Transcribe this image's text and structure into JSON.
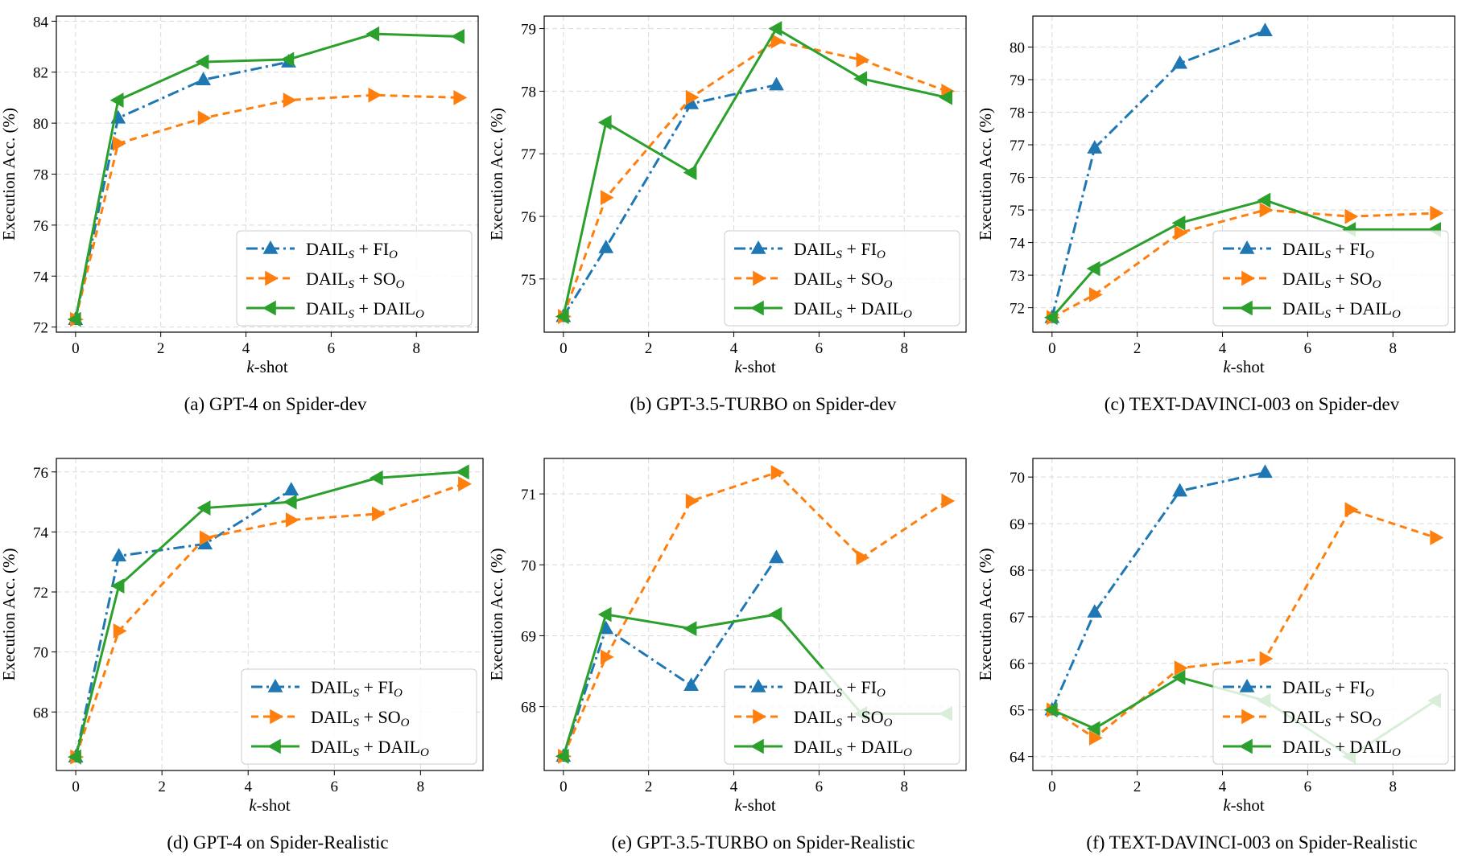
{
  "legend_labels": {
    "fi": {
      "main": "DAIL",
      "s": "S",
      "plus": " + ",
      "tail": "FI",
      "o": "O"
    },
    "so": {
      "main": "DAIL",
      "s": "S",
      "plus": " + ",
      "tail": "SO",
      "o": "O"
    },
    "dail": {
      "main": "DAIL",
      "s": "S",
      "plus": " + ",
      "tail": "DAIL",
      "o": "O"
    }
  },
  "series_colors": {
    "fi": "#1f77b4",
    "so": "#ff7f0e",
    "dail": "#2ca02c"
  },
  "chart_data": [
    {
      "type": "line",
      "caption": "(a)  GPT-4 on Spider-dev",
      "xlabel": "k-shot",
      "ylabel": "Execution Acc. (%)",
      "xlim": [
        -0.45,
        9.45
      ],
      "ylim": [
        71.8,
        84.2
      ],
      "xticks": [
        0,
        2,
        4,
        6,
        8
      ],
      "yticks": [
        72,
        74,
        76,
        78,
        80,
        82,
        84
      ],
      "legend_position": "lower-right",
      "series": [
        {
          "key": "fi",
          "x": [
            0,
            1,
            3,
            5
          ],
          "y": [
            72.3,
            80.2,
            81.7,
            82.4
          ]
        },
        {
          "key": "so",
          "x": [
            0,
            1,
            3,
            5,
            7,
            9
          ],
          "y": [
            72.3,
            79.2,
            80.2,
            80.9,
            81.1,
            81.0
          ]
        },
        {
          "key": "dail",
          "x": [
            0,
            1,
            3,
            5,
            7,
            9
          ],
          "y": [
            72.3,
            80.9,
            82.4,
            82.5,
            83.5,
            83.4
          ]
        }
      ]
    },
    {
      "type": "line",
      "caption": "(b)  GPT-3.5-TURBO on Spider-dev",
      "xlabel": "k-shot",
      "ylabel": "Execution Acc. (%)",
      "xlim": [
        -0.45,
        9.45
      ],
      "ylim": [
        74.15,
        79.2
      ],
      "xticks": [
        0,
        2,
        4,
        6,
        8
      ],
      "yticks": [
        75,
        76,
        77,
        78,
        79
      ],
      "legend_position": "lower-right",
      "series": [
        {
          "key": "fi",
          "x": [
            0,
            1,
            3,
            5
          ],
          "y": [
            74.4,
            75.5,
            77.8,
            78.1
          ]
        },
        {
          "key": "so",
          "x": [
            0,
            1,
            3,
            5,
            7,
            9
          ],
          "y": [
            74.4,
            76.3,
            77.9,
            78.8,
            78.5,
            78.0
          ]
        },
        {
          "key": "dail",
          "x": [
            0,
            1,
            3,
            5,
            7,
            9
          ],
          "y": [
            74.4,
            77.5,
            76.7,
            79.0,
            78.2,
            77.9
          ]
        }
      ]
    },
    {
      "type": "line",
      "caption": "(c)  TEXT-DAVINCI-003 on Spider-dev",
      "xlabel": "k-shot",
      "ylabel": "Execution Acc. (%)",
      "xlim": [
        -0.45,
        9.45
      ],
      "ylim": [
        71.25,
        80.95
      ],
      "xticks": [
        0,
        2,
        4,
        6,
        8
      ],
      "yticks": [
        72,
        73,
        74,
        75,
        76,
        77,
        78,
        79,
        80
      ],
      "legend_position": "lower-right",
      "series": [
        {
          "key": "fi",
          "x": [
            0,
            1,
            3,
            5
          ],
          "y": [
            71.7,
            76.9,
            79.5,
            80.5
          ]
        },
        {
          "key": "so",
          "x": [
            0,
            1,
            3,
            5,
            7,
            9
          ],
          "y": [
            71.7,
            72.4,
            74.3,
            75.0,
            74.8,
            74.9
          ]
        },
        {
          "key": "dail",
          "x": [
            0,
            1,
            3,
            5,
            7,
            9
          ],
          "y": [
            71.7,
            73.2,
            74.6,
            75.3,
            74.4,
            74.4
          ]
        }
      ]
    },
    {
      "type": "line",
      "caption": "(d)  GPT-4 on Spider-Realistic",
      "xlabel": "k-shot",
      "ylabel": "Execution Acc. (%)",
      "xlim": [
        -0.45,
        9.45
      ],
      "ylim": [
        66.05,
        76.45
      ],
      "xticks": [
        0,
        2,
        4,
        6,
        8
      ],
      "yticks": [
        68,
        70,
        72,
        74,
        76
      ],
      "legend_position": "lower-right",
      "series": [
        {
          "key": "fi",
          "x": [
            0,
            1,
            3,
            5
          ],
          "y": [
            66.5,
            73.2,
            73.6,
            75.4
          ]
        },
        {
          "key": "so",
          "x": [
            0,
            1,
            3,
            5,
            7,
            9
          ],
          "y": [
            66.5,
            70.7,
            73.8,
            74.4,
            74.6,
            75.6
          ]
        },
        {
          "key": "dail",
          "x": [
            0,
            1,
            3,
            5,
            7,
            9
          ],
          "y": [
            66.5,
            72.2,
            74.8,
            75.0,
            75.8,
            76.0
          ]
        }
      ]
    },
    {
      "type": "line",
      "caption": "(e)  GPT-3.5-TURBO on Spider-Realistic",
      "xlabel": "k-shot",
      "ylabel": "Execution Acc. (%)",
      "xlim": [
        -0.45,
        9.45
      ],
      "ylim": [
        67.1,
        71.5
      ],
      "xticks": [
        0,
        2,
        4,
        6,
        8
      ],
      "yticks": [
        68,
        69,
        70,
        71
      ],
      "legend_position": "lower-right",
      "series": [
        {
          "key": "fi",
          "x": [
            0,
            1,
            3,
            5
          ],
          "y": [
            67.3,
            69.1,
            68.3,
            70.1
          ]
        },
        {
          "key": "so",
          "x": [
            0,
            1,
            3,
            5,
            7,
            9
          ],
          "y": [
            67.3,
            68.7,
            70.9,
            71.3,
            70.1,
            70.9
          ]
        },
        {
          "key": "dail",
          "x": [
            0,
            1,
            3,
            5,
            7,
            9
          ],
          "y": [
            67.3,
            69.3,
            69.1,
            69.3,
            67.9,
            67.9
          ]
        }
      ]
    },
    {
      "type": "line",
      "caption": "(f)  TEXT-DAVINCI-003 on Spider-Realistic",
      "xlabel": "k-shot",
      "ylabel": "Execution Acc. (%)",
      "xlim": [
        -0.45,
        9.45
      ],
      "ylim": [
        63.7,
        70.4
      ],
      "xticks": [
        0,
        2,
        4,
        6,
        8
      ],
      "yticks": [
        64,
        65,
        66,
        67,
        68,
        69,
        70
      ],
      "legend_position": "lower-right",
      "series": [
        {
          "key": "fi",
          "x": [
            0,
            1,
            3,
            5
          ],
          "y": [
            65.0,
            67.1,
            69.7,
            70.1
          ]
        },
        {
          "key": "so",
          "x": [
            0,
            1,
            3,
            5,
            7,
            9
          ],
          "y": [
            65.0,
            64.4,
            65.9,
            66.1,
            69.3,
            68.7
          ]
        },
        {
          "key": "dail",
          "x": [
            0,
            1,
            3,
            5,
            7,
            9
          ],
          "y": [
            65.0,
            64.6,
            65.7,
            65.2,
            64.0,
            65.2
          ]
        }
      ]
    }
  ]
}
